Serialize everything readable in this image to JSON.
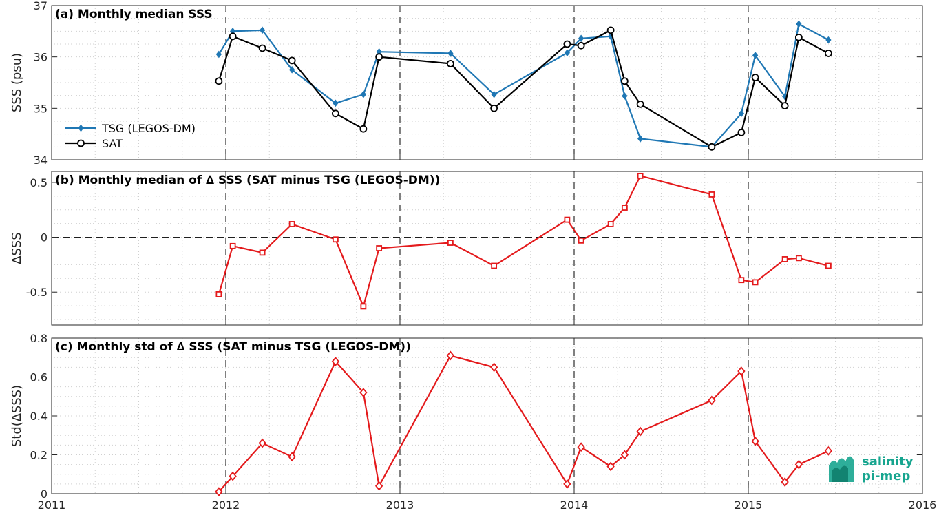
{
  "colors": {
    "tsg": "#1f77b4",
    "sat": "#000000",
    "delta": "#e41a1c",
    "logo": "#17a58f"
  },
  "x_axis": {
    "range": [
      2011,
      2016
    ],
    "ticks": [
      2011,
      2012,
      2013,
      2014,
      2015,
      2016
    ],
    "tick_labels": [
      "2011",
      "2012",
      "2013",
      "2014",
      "2015",
      "2016"
    ]
  },
  "logo": {
    "line1": "salinity",
    "line2": "pi-mep"
  },
  "chart_data": [
    {
      "type": "line",
      "panel": "a",
      "title": "(a) Monthly median SSS",
      "ylabel": "SSS (psu)",
      "ylim": [
        34,
        37
      ],
      "yticks": [
        34,
        35,
        36,
        37
      ],
      "ytick_labels": [
        "34",
        "35",
        "36",
        "37"
      ],
      "grid": true,
      "legend": "left",
      "series": [
        {
          "name": "TSG (LEGOS-DM)",
          "marker": "diamond",
          "color_key": "tsg",
          "x": [
            2011.96,
            2012.04,
            2012.21,
            2012.38,
            2012.63,
            2012.79,
            2012.88,
            2013.29,
            2013.54,
            2013.96,
            2014.04,
            2014.21,
            2014.29,
            2014.38,
            2014.79,
            2014.96,
            2015.04,
            2015.21,
            2015.29,
            2015.46
          ],
          "y": [
            36.05,
            36.5,
            36.52,
            35.75,
            35.1,
            35.27,
            36.1,
            36.07,
            35.27,
            36.08,
            36.36,
            36.4,
            35.24,
            34.41,
            34.25,
            34.9,
            36.03,
            35.23,
            36.64,
            36.33
          ]
        },
        {
          "name": "SAT",
          "marker": "circle",
          "color_key": "sat",
          "x": [
            2011.96,
            2012.04,
            2012.21,
            2012.38,
            2012.63,
            2012.79,
            2012.88,
            2013.29,
            2013.54,
            2013.96,
            2014.04,
            2014.21,
            2014.29,
            2014.38,
            2014.79,
            2014.96,
            2015.04,
            2015.21,
            2015.29,
            2015.46
          ],
          "y": [
            35.53,
            36.4,
            36.17,
            35.93,
            34.9,
            34.6,
            36.0,
            35.87,
            35.0,
            36.25,
            36.22,
            36.52,
            35.53,
            35.08,
            34.25,
            34.53,
            35.6,
            35.05,
            36.38,
            36.07
          ]
        }
      ]
    },
    {
      "type": "line",
      "panel": "b",
      "title": "(b) Monthly median of ∆ SSS (SAT minus TSG (LEGOS-DM))",
      "ylabel": "∆SSS",
      "ylim": [
        -0.8,
        0.6
      ],
      "yticks": [
        -0.5,
        0,
        0.5
      ],
      "ytick_labels": [
        "-0.5",
        "0",
        "0.5"
      ],
      "grid": true,
      "series": [
        {
          "marker": "square",
          "color_key": "delta",
          "x": [
            2011.96,
            2012.04,
            2012.21,
            2012.38,
            2012.63,
            2012.79,
            2012.88,
            2013.29,
            2013.54,
            2013.96,
            2014.04,
            2014.21,
            2014.29,
            2014.38,
            2014.79,
            2014.96,
            2015.04,
            2015.21,
            2015.29,
            2015.46
          ],
          "y": [
            -0.52,
            -0.08,
            -0.14,
            0.12,
            -0.02,
            -0.63,
            -0.1,
            -0.05,
            -0.26,
            0.16,
            -0.03,
            0.12,
            0.27,
            0.56,
            0.39,
            -0.39,
            -0.41,
            -0.2,
            -0.19,
            -0.26
          ]
        }
      ]
    },
    {
      "type": "line",
      "panel": "c",
      "title": "(c) Monthly std of ∆ SSS (SAT minus TSG (LEGOS-DM))",
      "ylabel": "Std(∆SSS)",
      "xlabel": "",
      "ylim": [
        0,
        0.8
      ],
      "yticks": [
        0,
        0.2,
        0.4,
        0.6,
        0.8
      ],
      "ytick_labels": [
        "0",
        "0.2",
        "0.4",
        "0.6",
        "0.8"
      ],
      "grid": true,
      "series": [
        {
          "marker": "diamond-open",
          "color_key": "delta",
          "x": [
            2011.96,
            2012.04,
            2012.21,
            2012.38,
            2012.63,
            2012.79,
            2012.88,
            2013.29,
            2013.54,
            2013.96,
            2014.04,
            2014.21,
            2014.29,
            2014.38,
            2014.79,
            2014.96,
            2015.04,
            2015.21,
            2015.29,
            2015.46
          ],
          "y": [
            0.01,
            0.09,
            0.26,
            0.19,
            0.68,
            0.52,
            0.04,
            0.71,
            0.65,
            0.05,
            0.24,
            0.14,
            0.2,
            0.32,
            0.48,
            0.63,
            0.27,
            0.06,
            0.15,
            0.22
          ]
        }
      ]
    }
  ]
}
